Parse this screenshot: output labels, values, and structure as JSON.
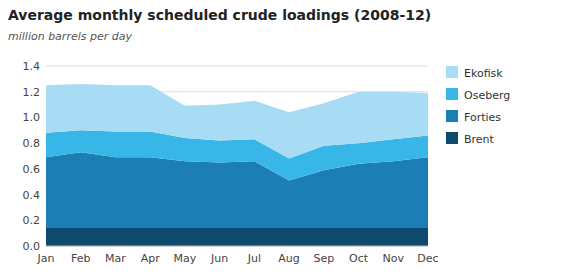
{
  "chart_data": {
    "type": "area",
    "stacked": true,
    "title": "Average monthly scheduled crude loadings (2008-12)",
    "subtitle": "million barrels per day",
    "categories": [
      "Jan",
      "Feb",
      "Mar",
      "Apr",
      "May",
      "Jun",
      "Jul",
      "Aug",
      "Sep",
      "Oct",
      "Nov",
      "Dec"
    ],
    "series": [
      {
        "name": "Brent",
        "color": "#0d4a6b",
        "values": [
          0.14,
          0.14,
          0.14,
          0.14,
          0.14,
          0.14,
          0.14,
          0.14,
          0.14,
          0.14,
          0.14,
          0.14
        ]
      },
      {
        "name": "Forties",
        "color": "#1b7eb5",
        "values": [
          0.55,
          0.59,
          0.55,
          0.55,
          0.52,
          0.51,
          0.52,
          0.37,
          0.45,
          0.5,
          0.52,
          0.55
        ]
      },
      {
        "name": "Oseberg",
        "color": "#38b6e8",
        "values": [
          0.19,
          0.17,
          0.2,
          0.2,
          0.18,
          0.17,
          0.17,
          0.17,
          0.19,
          0.16,
          0.17,
          0.17
        ]
      },
      {
        "name": "Ekofisk",
        "color": "#a8dcf5",
        "values": [
          0.37,
          0.36,
          0.36,
          0.36,
          0.25,
          0.28,
          0.3,
          0.36,
          0.33,
          0.4,
          0.37,
          0.33
        ]
      }
    ],
    "ylim": [
      0,
      1.4
    ],
    "yticks": [
      {
        "value": 0,
        "label": "0.0"
      },
      0.2,
      0.4,
      0.6,
      0.8,
      {
        "value": 1,
        "label": "1.0"
      },
      1.2,
      1.4
    ],
    "grid": true,
    "legend": "right"
  }
}
